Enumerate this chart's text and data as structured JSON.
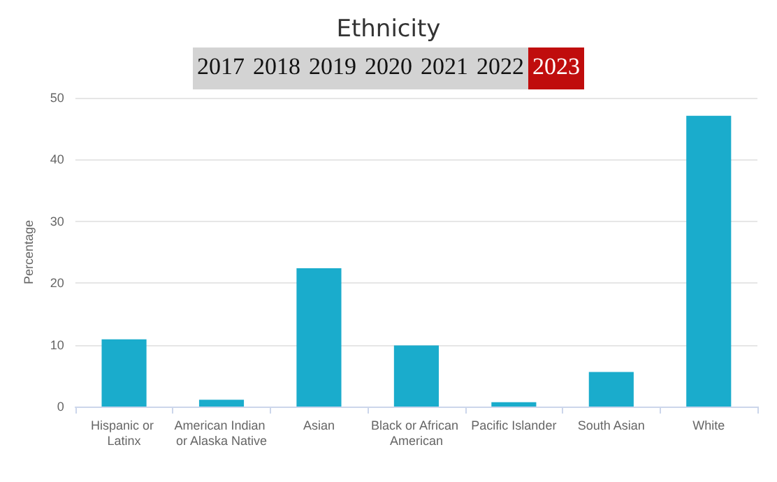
{
  "chart_data": {
    "type": "bar",
    "title": "Ethnicity",
    "ylabel": "Percentage",
    "annotations": [
      "2017",
      "2018",
      "2019",
      "2020",
      "2021",
      "2022",
      "2023"
    ],
    "categories": [
      "Hispanic or Latinx",
      "American Indian or Alaska Native",
      "Asian",
      "Black or African American",
      "Pacific Islander",
      "South Asian",
      "White"
    ],
    "values": [
      10.9,
      1.1,
      22.4,
      9.9,
      0.7,
      5.6,
      47.1
    ],
    "color": "#1aaccc",
    "ylim": [
      0,
      50
    ],
    "yticks": [
      0,
      10,
      20,
      30,
      40,
      50
    ],
    "grid": "y"
  }
}
